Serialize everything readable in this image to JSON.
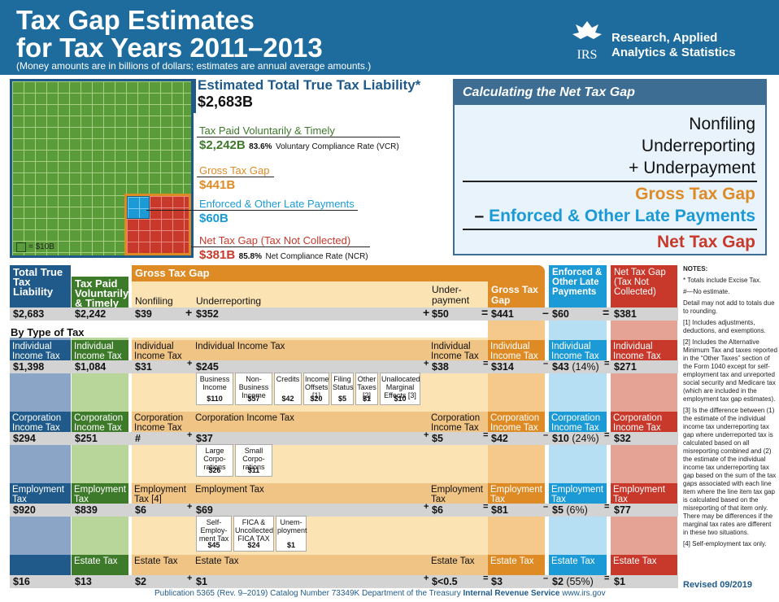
{
  "header": {
    "title1": "Tax Gap Estimates",
    "title2": "for Tax Years 2011–2013",
    "subtitle": "(Money amounts are in billions of dollars; estimates are annual average amounts.)",
    "org_line1": "Research, Applied",
    "org_line2": "Analytics & Statistics",
    "logo_text": "IRS"
  },
  "legend": "= $10B",
  "summary": {
    "liability_label": "Estimated Total True Tax Liability*",
    "liability_value": "$2,683B",
    "paid_label": "Tax Paid Voluntarily & Timely",
    "paid_value": "$2,242B",
    "vcr_pct": "83.6%",
    "vcr_text": "Voluntary Compliance Rate (VCR)",
    "gross_label": "Gross Tax Gap",
    "gross_value": "$441B",
    "enf_label": "Enforced & Other Late Payments",
    "enf_value": "$60B",
    "net_label": "Net Tax Gap (Tax Not Collected)",
    "net_value": "$381B",
    "ncr_pct": "85.8%",
    "ncr_text": "Net Compliance Rate (NCR)"
  },
  "calc": {
    "title": "Calculating the Net Tax Gap",
    "l1": "Nonfiling",
    "l2": "Underreporting",
    "l3": "+ Underpayment",
    "l4": "Gross Tax Gap",
    "l5_op": "–",
    "l5": "Enforced & Other Late Payments",
    "l6": "Net Tax Gap"
  },
  "columns": {
    "total": "Total True Tax Liability",
    "paid": "Tax Paid Voluntarily & Timely",
    "gross_header": "Gross Tax Gap",
    "nonfiling": "Nonfiling",
    "underreporting": "Underreporting",
    "underpayment": "Under-payment",
    "gross": "Gross Tax Gap",
    "enforced": "Enforced & Other Late Payments",
    "net": "Net Tax Gap (Tax Not Collected)"
  },
  "totals": {
    "total": "$2,683",
    "paid": "$2,242",
    "nonfiling": "$39",
    "plus1": "+",
    "underreporting": "$352",
    "plus2": "+",
    "underpayment": "$50",
    "eq1": "=",
    "gross": "$441",
    "minus": "–",
    "enforced": "$60",
    "eq2": "=",
    "net": "$381"
  },
  "by_type": "By Type of Tax",
  "rows": {
    "ind": {
      "label": "Individual Income Tax",
      "total": "$1,398",
      "paid": "$1,084",
      "nonfiling": "$31",
      "under": "$245",
      "underpay": "$38",
      "gross": "$314",
      "enf": "$43",
      "enf_pct": "(14%)",
      "net": "$271"
    },
    "corp": {
      "label": "Corporation Income Tax",
      "total": "$294",
      "paid": "$251",
      "nonfiling": "#",
      "under": "$37",
      "underpay": "$5",
      "gross": "$42",
      "enf": "$10",
      "enf_pct": "(24%)",
      "net": "$32"
    },
    "emp": {
      "label": "Employment Tax",
      "label_nf": "Employment Tax [4]",
      "total": "$920",
      "paid": "$839",
      "nonfiling": "$6",
      "under": "$69",
      "underpay": "$6",
      "gross": "$81",
      "enf": "$5",
      "enf_pct": "(6%)",
      "net": "$77"
    },
    "est": {
      "label": "Estate Tax",
      "total": "$16",
      "paid": "$13",
      "nonfiling": "$2",
      "under": "$1",
      "underpay": "$<0.5",
      "gross": "$3",
      "enf": "$2",
      "enf_pct": "(55%)",
      "net": "$1"
    }
  },
  "ind_sub": [
    {
      "l": "Business Income",
      "v": "$110"
    },
    {
      "l": "Non-Business Income",
      "v": "$57"
    },
    {
      "l": "Credits",
      "v": "$42"
    },
    {
      "l": "Income Offsets [1]",
      "v": "$20"
    },
    {
      "l": "Filing Status",
      "v": "$5"
    },
    {
      "l": "Other Taxes [2]",
      "v": "$1"
    },
    {
      "l": "Unallocated Marginal Effects [3]",
      "v": "$10"
    }
  ],
  "corp_sub": [
    {
      "l": "Large Corpo-rations",
      "v": "$26"
    },
    {
      "l": "Small Corpo-rations",
      "v": "$11"
    }
  ],
  "emp_sub": [
    {
      "l": "Self-Employ-ment Tax",
      "v": "$45"
    },
    {
      "l": "FICA & Uncollected FICA TAX",
      "v": "$24"
    },
    {
      "l": "Unem-ployment",
      "v": "$1"
    }
  ],
  "notes": {
    "title": "NOTES:",
    "n1": "* Totals include Excise Tax.",
    "n2": "#—No estimate.",
    "n3": "Detail may not add to totals due to rounding.",
    "n4": "[1] Includes adjustments, deductions, and exemptions.",
    "n5": "[2] Includes the Alternative Minimum Tax and taxes reported in the “Other Taxes” section of the Form 1040 except for self-employment tax and unreported social security and Medicare tax (which are included in the employment tax gap estimates).",
    "n6": "[3] Is the difference between (1) the estimate of the individual income tax underreporting tax gap where underreported tax is calculated based on all misreporting combined and (2) the estimate of the individual income tax underreporting tax gap based on the sum of the tax gaps associated with each line item where the line item tax gap is calculated based on the misreporting of that item only. There may be differences if the marginal tax rates are different in these two situations.",
    "n7": "[4] Self-employment tax only.",
    "revised": "Revised 09/2019"
  },
  "footer": {
    "pub": "Publication 5365 (Rev. 9–2019)  Catalog Number 73349K  Department of the Treasury",
    "irs": "Internal Revenue Service",
    "url": "www.irs.gov"
  },
  "colors": {
    "total": "#1f5a8a",
    "paid": "#3d7a2a",
    "gross": "#de8b26",
    "enforced": "#1b9ad6",
    "net": "#c8392b"
  }
}
